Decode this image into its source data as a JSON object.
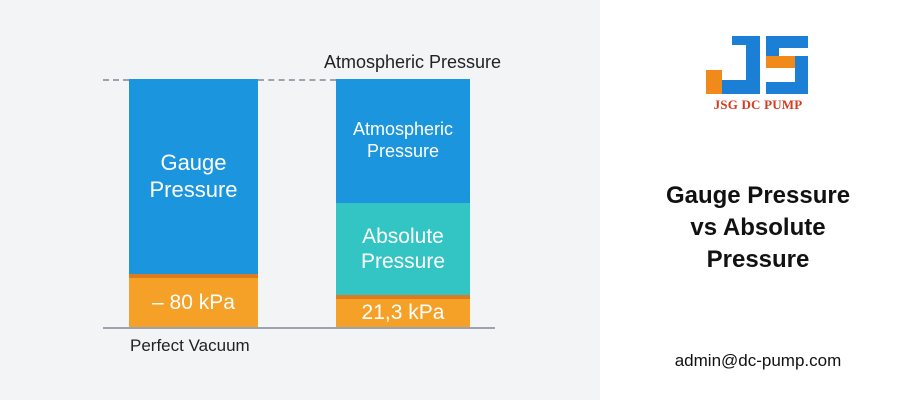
{
  "diagram": {
    "left_column": {
      "gauge_label": "Gauge\nPressure",
      "value_label": "– 80 kPa"
    },
    "right_column": {
      "atmospheric_label": "Atmospheric\nPressure",
      "absolute_label": "Absolute\nPressure",
      "value_label": "21,3 kPa"
    },
    "top_reference_label": "Atmospheric Pressure",
    "bottom_reference_label": "Perfect Vacuum",
    "colors": {
      "gauge": "#1b95dd",
      "atmospheric": "#1b95dd",
      "absolute": "#33c4c4",
      "value_fill": "#f5a027"
    }
  },
  "sidebar": {
    "logo_text": "JSG DC PUMP",
    "headline_lines": [
      "Gauge Pressure",
      "vs Absolute",
      "Pressure"
    ],
    "email": "admin@dc-pump.com"
  }
}
